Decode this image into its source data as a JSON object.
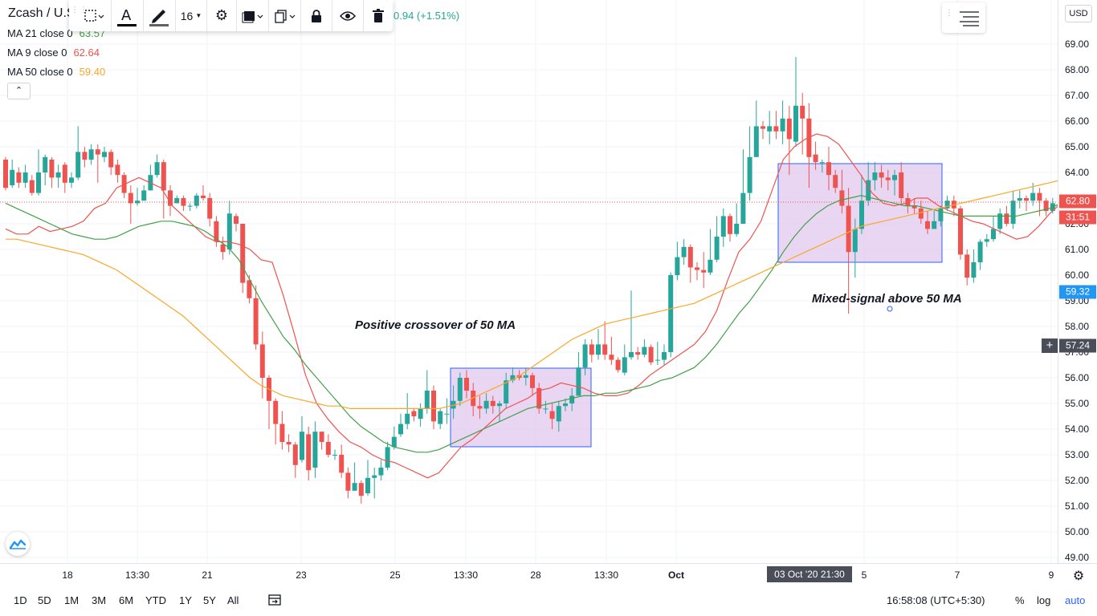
{
  "symbol": {
    "title": "Zcash / U.S",
    "change_text": "0.94 (+1.51%)",
    "currency_badge": "USD"
  },
  "indicators": [
    {
      "label": "MA 21 close 0",
      "value": "63.57",
      "color": "#43a047"
    },
    {
      "label": "MA 9 close 0",
      "value": "62.64",
      "color": "#ef5350"
    },
    {
      "label": "MA 50 close 0",
      "value": "59.40",
      "color": "#f9a825"
    }
  ],
  "toolbar": {
    "font_size": "16",
    "items": [
      "select-area-icon",
      "text-color-icon",
      "line-color-icon",
      "font-size-dropdown",
      "settings-icon",
      "template-icon",
      "clone-icon",
      "lock-icon",
      "visibility-icon",
      "trash-icon"
    ]
  },
  "annotations": {
    "positive_crossover": "Positive crossover of 50 MA",
    "mixed_signal": "Mixed-signal above 50 MA"
  },
  "price_axis": {
    "labels": [
      "69.00",
      "68.00",
      "67.00",
      "66.00",
      "65.00",
      "64.00",
      "63.00",
      "62.00",
      "61.00",
      "60.00",
      "59.00",
      "58.00",
      "57.00",
      "56.00",
      "55.00",
      "54.00",
      "53.00",
      "52.00",
      "51.00",
      "50.00",
      "49.00"
    ],
    "current_price": "62.80",
    "countdown": "31:51",
    "ma50_tag": "59.32",
    "crosshair_price": "57.24"
  },
  "time_axis": {
    "labels": [
      {
        "text": "18",
        "bold": false
      },
      {
        "text": "13:30",
        "bold": false
      },
      {
        "text": "21",
        "bold": false
      },
      {
        "text": "23",
        "bold": false
      },
      {
        "text": "25",
        "bold": false
      },
      {
        "text": "13:30",
        "bold": false
      },
      {
        "text": "28",
        "bold": false
      },
      {
        "text": "13:30",
        "bold": false
      },
      {
        "text": "Oct",
        "bold": true
      },
      {
        "text": "5",
        "bold": false
      },
      {
        "text": "7",
        "bold": false
      },
      {
        "text": "9",
        "bold": false
      }
    ],
    "crosshair_date": "03 Oct '20  21:30"
  },
  "bottom_bar": {
    "ranges": [
      "1D",
      "5D",
      "1M",
      "3M",
      "6M",
      "YTD",
      "1Y",
      "5Y",
      "All"
    ],
    "clock": "16:58:08 (UTC+5:30)",
    "percent": "%",
    "log": "log",
    "auto": "auto"
  },
  "colors": {
    "up": "#26a69a",
    "down": "#ef5350",
    "ma9": "#ef5350",
    "ma21": "#43a047",
    "ma50": "#f9a825",
    "highlight_fill": "#e1c8ee",
    "highlight_stroke": "#2962ff"
  },
  "chart_data": {
    "type": "candlestick",
    "ylim": [
      48.6,
      70.5
    ],
    "grid": true,
    "candles": [
      [
        64.5,
        63.4,
        64.6,
        63.3
      ],
      [
        63.5,
        64.1,
        64.5,
        63.4
      ],
      [
        64.0,
        63.6,
        64.2,
        63.4
      ],
      [
        63.6,
        64.0,
        64.3,
        63.4
      ],
      [
        63.7,
        63.2,
        63.9,
        63.1
      ],
      [
        63.2,
        64.0,
        64.9,
        63.1
      ],
      [
        64.0,
        64.6,
        64.7,
        63.5
      ],
      [
        64.5,
        63.8,
        64.6,
        63.4
      ],
      [
        63.8,
        64.0,
        64.3,
        63.4
      ],
      [
        64.3,
        63.6,
        64.4,
        63.2
      ],
      [
        63.6,
        63.8,
        64.0,
        63.4
      ],
      [
        63.8,
        64.8,
        65.8,
        63.7
      ],
      [
        64.8,
        64.5,
        65.0,
        64.2
      ],
      [
        64.5,
        64.9,
        65.1,
        64.3
      ],
      [
        64.9,
        64.7,
        65.1,
        63.6
      ],
      [
        64.6,
        64.8,
        65.0,
        64.4
      ],
      [
        64.8,
        64.2,
        64.9,
        63.9
      ],
      [
        64.3,
        63.9,
        64.5,
        63.6
      ],
      [
        63.9,
        63.2,
        64.0,
        63.0
      ],
      [
        63.2,
        62.8,
        63.5,
        62.0
      ],
      [
        62.8,
        62.9,
        63.4,
        62.7
      ],
      [
        62.9,
        63.3,
        63.5,
        63.0
      ],
      [
        63.3,
        63.9,
        64.3,
        63.3
      ],
      [
        63.9,
        64.4,
        64.7,
        63.8
      ],
      [
        64.4,
        63.3,
        64.5,
        62.2
      ],
      [
        63.3,
        62.7,
        63.5,
        62.3
      ],
      [
        62.8,
        63.0,
        63.1,
        62.8
      ],
      [
        63.0,
        62.7,
        63.1,
        62.5
      ],
      [
        62.7,
        62.7,
        62.8,
        62.5
      ],
      [
        62.7,
        63.1,
        63.2,
        62.6
      ],
      [
        63.1,
        63.0,
        63.5,
        62.9
      ],
      [
        63.0,
        62.2,
        63.2,
        61.9
      ],
      [
        62.1,
        61.3,
        62.3,
        61.1
      ],
      [
        61.2,
        60.9,
        61.5,
        60.6
      ],
      [
        61.0,
        62.4,
        62.9,
        60.8
      ],
      [
        62.3,
        62.0,
        62.4,
        61.7
      ],
      [
        62.0,
        59.7,
        62.0,
        59.3
      ],
      [
        59.8,
        59.1,
        60.0,
        58.9
      ],
      [
        59.1,
        57.3,
        59.6,
        57.1
      ],
      [
        57.3,
        56.0,
        57.8,
        55.2
      ],
      [
        56.0,
        55.1,
        56.1,
        54.0
      ],
      [
        55.1,
        54.2,
        55.2,
        53.4
      ],
      [
        54.2,
        53.5,
        54.7,
        53.2
      ],
      [
        53.5,
        53.4,
        53.8,
        53.1
      ],
      [
        53.4,
        52.6,
        53.5,
        52.1
      ],
      [
        52.8,
        53.9,
        54.5,
        52.7
      ],
      [
        53.8,
        52.4,
        54.1,
        52.0
      ],
      [
        52.5,
        53.9,
        54.3,
        52.1
      ],
      [
        53.9,
        53.5,
        53.9,
        53.2
      ],
      [
        53.5,
        53.0,
        53.8,
        52.9
      ],
      [
        53.0,
        53.0,
        53.2,
        52.8
      ],
      [
        53.0,
        52.3,
        53.4,
        52.1
      ],
      [
        52.3,
        51.6,
        52.5,
        51.3
      ],
      [
        51.6,
        51.9,
        52.7,
        51.6
      ],
      [
        51.9,
        51.4,
        52.0,
        51.1
      ],
      [
        51.5,
        52.1,
        52.8,
        51.4
      ],
      [
        52.1,
        52.2,
        52.5,
        51.3
      ],
      [
        52.2,
        52.5,
        52.8,
        52.0
      ],
      [
        52.5,
        53.3,
        53.5,
        52.4
      ],
      [
        53.3,
        53.7,
        54.1,
        53.2
      ],
      [
        53.8,
        54.2,
        54.6,
        53.7
      ],
      [
        54.2,
        54.6,
        55.4,
        54.0
      ],
      [
        54.7,
        54.5,
        54.8,
        54.3
      ],
      [
        54.4,
        54.8,
        55.0,
        54.1
      ],
      [
        54.8,
        55.5,
        56.3,
        54.6
      ],
      [
        55.5,
        54.3,
        55.7,
        54.0
      ],
      [
        54.2,
        54.7,
        54.8,
        54.0
      ],
      [
        54.6,
        54.6,
        55.2,
        54.2
      ],
      [
        54.8,
        55.1,
        55.7,
        54.4
      ],
      [
        55.1,
        56.0,
        56.2,
        54.9
      ],
      [
        56.0,
        55.5,
        56.3,
        55.2
      ],
      [
        55.5,
        54.9,
        55.8,
        54.5
      ],
      [
        54.9,
        54.8,
        55.3,
        54.4
      ],
      [
        54.8,
        55.1,
        55.4,
        54.6
      ],
      [
        55.1,
        54.9,
        55.3,
        54.6
      ],
      [
        54.9,
        55.0,
        55.1,
        54.3
      ],
      [
        55.0,
        55.9,
        56.2,
        54.8
      ],
      [
        55.9,
        56.1,
        56.4,
        55.8
      ],
      [
        56.1,
        56.0,
        56.3,
        55.9
      ],
      [
        56.0,
        56.1,
        56.4,
        55.7
      ],
      [
        56.1,
        55.6,
        56.2,
        55.3
      ],
      [
        55.6,
        54.8,
        55.8,
        54.6
      ],
      [
        54.8,
        54.8,
        55.1,
        54.6
      ],
      [
        54.7,
        54.4,
        55.0,
        54.0
      ],
      [
        54.3,
        54.9,
        55.1,
        53.9
      ],
      [
        54.9,
        55.0,
        55.2,
        54.7
      ],
      [
        55.0,
        55.3,
        55.6,
        54.7
      ],
      [
        55.3,
        56.4,
        57.0,
        55.3
      ],
      [
        56.4,
        57.3,
        57.5,
        56.1
      ],
      [
        57.3,
        56.9,
        57.5,
        56.6
      ],
      [
        56.9,
        57.3,
        57.9,
        56.7
      ],
      [
        57.3,
        56.9,
        58.2,
        56.7
      ],
      [
        56.9,
        56.7,
        57.6,
        56.5
      ],
      [
        56.7,
        56.3,
        56.8,
        56.2
      ],
      [
        56.2,
        56.8,
        57.3,
        56.1
      ],
      [
        56.8,
        57.0,
        59.4,
        56.7
      ],
      [
        57.0,
        56.9,
        57.2,
        56.7
      ],
      [
        56.9,
        57.2,
        57.5,
        56.8
      ],
      [
        57.2,
        56.6,
        57.3,
        56.5
      ],
      [
        56.7,
        56.7,
        57.4,
        56.5
      ],
      [
        56.7,
        57.0,
        57.3,
        56.5
      ],
      [
        57.0,
        60.0,
        60.1,
        56.8
      ],
      [
        60.0,
        60.7,
        61.3,
        59.8
      ],
      [
        60.7,
        61.1,
        61.4,
        60.4
      ],
      [
        61.1,
        60.3,
        61.2,
        59.7
      ],
      [
        60.3,
        60.2,
        60.5,
        59.8
      ],
      [
        60.2,
        60.1,
        60.9,
        59.5
      ],
      [
        60.1,
        60.6,
        61.8,
        60.0
      ],
      [
        60.6,
        61.5,
        62.3,
        60.5
      ],
      [
        61.5,
        62.3,
        62.6,
        61.1
      ],
      [
        62.3,
        61.6,
        62.4,
        61.3
      ],
      [
        61.6,
        62.0,
        62.8,
        61.5
      ],
      [
        62.0,
        63.2,
        64.9,
        62.0
      ],
      [
        63.2,
        64.6,
        65.8,
        62.9
      ],
      [
        64.6,
        65.8,
        66.8,
        64.6
      ],
      [
        65.8,
        65.7,
        66.0,
        65.3
      ],
      [
        65.6,
        65.8,
        66.4,
        65.1
      ],
      [
        65.8,
        65.6,
        66.4,
        65.3
      ],
      [
        65.6,
        66.1,
        66.8,
        65.1
      ],
      [
        66.1,
        65.3,
        66.6,
        63.9
      ],
      [
        65.2,
        66.6,
        68.5,
        65.0
      ],
      [
        66.6,
        66.1,
        67.1,
        64.7
      ],
      [
        66.1,
        64.6,
        66.7,
        63.4
      ],
      [
        64.7,
        64.4,
        65.2,
        64.1
      ],
      [
        64.4,
        64.4,
        64.5,
        64.0
      ],
      [
        64.4,
        63.9,
        65.0,
        63.3
      ],
      [
        63.9,
        63.4,
        64.1,
        63.2
      ],
      [
        63.3,
        62.7,
        64.1,
        62.4
      ],
      [
        62.7,
        60.9,
        63.4,
        58.5
      ],
      [
        60.9,
        61.8,
        62.2,
        59.9
      ],
      [
        61.8,
        62.9,
        63.9,
        61.6
      ],
      [
        62.9,
        63.7,
        64.4,
        62.7
      ],
      [
        63.7,
        64.0,
        64.4,
        63.3
      ],
      [
        64.0,
        63.8,
        64.3,
        63.4
      ],
      [
        63.8,
        63.7,
        64.1,
        63.3
      ],
      [
        63.7,
        63.9,
        64.1,
        63.1
      ],
      [
        64.0,
        63.0,
        64.4,
        62.7
      ],
      [
        63.0,
        62.7,
        63.2,
        62.4
      ],
      [
        62.7,
        62.6,
        63.0,
        62.4
      ],
      [
        62.6,
        62.2,
        62.9,
        62.0
      ],
      [
        62.1,
        61.8,
        62.5,
        61.6
      ],
      [
        61.8,
        62.1,
        62.5,
        61.8
      ],
      [
        62.1,
        62.6,
        62.7,
        61.9
      ],
      [
        62.6,
        62.9,
        63.1,
        62.5
      ],
      [
        62.9,
        62.6,
        63.1,
        62.3
      ],
      [
        62.6,
        60.8,
        62.7,
        60.6
      ],
      [
        60.8,
        59.9,
        61.0,
        59.6
      ],
      [
        59.9,
        60.5,
        61.0,
        59.7
      ],
      [
        60.5,
        61.3,
        61.4,
        60.2
      ],
      [
        61.3,
        61.4,
        61.6,
        61.1
      ],
      [
        61.4,
        61.8,
        62.3,
        61.3
      ],
      [
        61.8,
        62.4,
        62.6,
        61.6
      ],
      [
        62.4,
        62.0,
        62.7,
        61.9
      ],
      [
        62.0,
        62.9,
        63.3,
        61.8
      ],
      [
        62.9,
        63.0,
        63.3,
        62.6
      ],
      [
        63.0,
        62.9,
        63.1,
        62.5
      ],
      [
        62.9,
        63.2,
        63.6,
        62.7
      ],
      [
        63.2,
        62.9,
        63.4,
        62.3
      ],
      [
        62.9,
        62.5,
        63.0,
        62.3
      ],
      [
        62.5,
        62.8,
        63.0,
        62.4
      ],
      [
        62.8,
        64.4,
        64.9,
        62.7
      ],
      [
        64.4,
        64.2,
        64.6,
        63.9
      ],
      [
        64.2,
        64.0,
        64.5,
        63.8
      ],
      [
        64.0,
        66.0,
        66.1,
        63.9
      ],
      [
        66.0,
        65.7,
        66.0,
        65.2
      ],
      [
        65.7,
        65.6,
        65.8,
        65.2
      ],
      [
        65.6,
        64.0,
        66.2,
        63.7
      ],
      [
        64.0,
        62.8,
        64.2,
        62.3
      ]
    ],
    "series": [
      {
        "name": "MA 9 close 0",
        "values": [
          61.8,
          61.6,
          61.6,
          61.9,
          61.7,
          61.8,
          61.9,
          62.1,
          62.6,
          62.8,
          63.4,
          63.6,
          63.8,
          63.6,
          63.4,
          62.7,
          62.3,
          61.9,
          61.5,
          61.3,
          61.3,
          61.2,
          61.0,
          60.6,
          60.5,
          59.2,
          57.7,
          56.1,
          55.0,
          54.4,
          53.9,
          53.5,
          53.3,
          53.0,
          52.8,
          52.7,
          52.5,
          52.3,
          52.1,
          52.3,
          52.8,
          53.3,
          53.6,
          54.0,
          54.4,
          54.8,
          55.0,
          55.2,
          55.5,
          55.6,
          55.8,
          55.7,
          55.6,
          55.4,
          55.3,
          55.3,
          55.4,
          55.7,
          56.1,
          56.4,
          56.7,
          57.0,
          57.3,
          57.8,
          58.6,
          59.8,
          60.9,
          61.4,
          62.1,
          63.3,
          64.5,
          65.0,
          65.3,
          65.5,
          65.4,
          65.1,
          64.5,
          63.9,
          63.2,
          62.8,
          62.7,
          62.8,
          63.0,
          63.0,
          62.7,
          62.5,
          62.3,
          62.1,
          62.0,
          61.8,
          61.6,
          61.4,
          61.5,
          61.9,
          62.4,
          62.8,
          63.2,
          63.5,
          64.0,
          64.2
        ]
      },
      {
        "name": "MA 21 close 0",
        "values": [
          62.8,
          62.6,
          62.4,
          62.2,
          62.0,
          61.8,
          61.6,
          61.5,
          61.4,
          61.4,
          61.5,
          61.7,
          61.9,
          62.0,
          62.1,
          62.1,
          62.0,
          61.9,
          61.7,
          61.4,
          61.1,
          60.6,
          59.8,
          59.0,
          58.3,
          57.6,
          57.1,
          56.5,
          56.0,
          55.5,
          55.0,
          54.5,
          54.1,
          53.8,
          53.5,
          53.3,
          53.2,
          53.1,
          53.1,
          53.2,
          53.4,
          53.6,
          53.8,
          54.0,
          54.2,
          54.4,
          54.6,
          54.8,
          54.9,
          55.0,
          55.1,
          55.2,
          55.3,
          55.3,
          55.4,
          55.4,
          55.5,
          55.6,
          55.7,
          55.9,
          56.0,
          56.2,
          56.4,
          56.8,
          57.3,
          57.9,
          58.5,
          59.0,
          59.6,
          60.2,
          60.9,
          61.5,
          62.0,
          62.4,
          62.7,
          62.9,
          63.0,
          63.1,
          63.0,
          62.9,
          62.8,
          62.7,
          62.7,
          62.6,
          62.5,
          62.4,
          62.3,
          62.3,
          62.3,
          62.3,
          62.3,
          62.3,
          62.4,
          62.5,
          62.6,
          62.8,
          62.9,
          63.1,
          63.3,
          63.4
        ]
      },
      {
        "name": "MA 50 close 0",
        "values": [
          61.4,
          61.4,
          61.3,
          61.2,
          61.1,
          61.0,
          60.9,
          60.8,
          60.6,
          60.4,
          60.2,
          59.9,
          59.6,
          59.3,
          59.0,
          58.7,
          58.4,
          58.0,
          57.6,
          57.2,
          56.8,
          56.4,
          56.0,
          55.7,
          55.5,
          55.3,
          55.2,
          55.1,
          55.0,
          54.9,
          54.9,
          54.8,
          54.8,
          54.8,
          54.8,
          54.8,
          54.8,
          54.8,
          54.8,
          54.8,
          54.9,
          55.0,
          55.2,
          55.4,
          55.6,
          55.8,
          56.0,
          56.3,
          56.6,
          56.9,
          57.2,
          57.5,
          57.7,
          57.9,
          58.1,
          58.2,
          58.3,
          58.4,
          58.5,
          58.6,
          58.7,
          58.8,
          58.9,
          59.1,
          59.3,
          59.5,
          59.7,
          59.9,
          60.1,
          60.3,
          60.5,
          60.7,
          60.9,
          61.1,
          61.3,
          61.5,
          61.7,
          61.9,
          62.0,
          62.1,
          62.2,
          62.3,
          62.4,
          62.5,
          62.6,
          62.7,
          62.8,
          62.9,
          63.0,
          63.1,
          63.2,
          63.3,
          63.4,
          63.5,
          63.6,
          63.7,
          63.8,
          63.9,
          64.0,
          64.0
        ]
      }
    ]
  }
}
